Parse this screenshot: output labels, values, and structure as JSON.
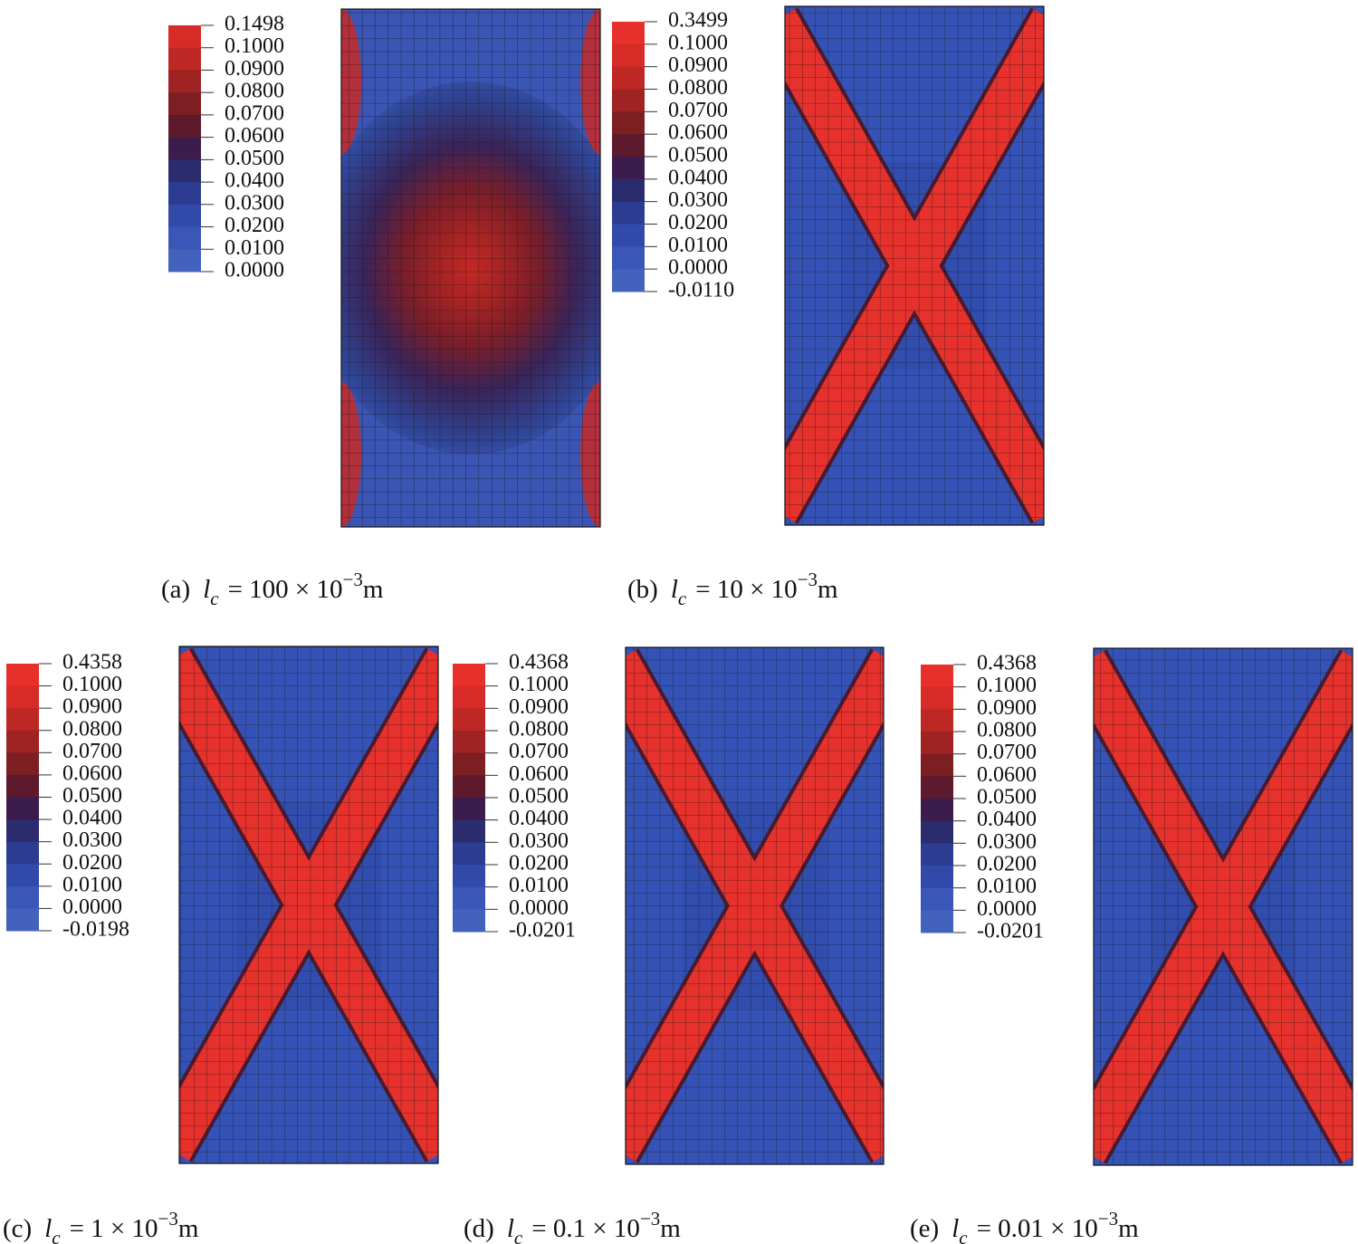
{
  "panels": [
    {
      "colorbar": {
        "labels": [
          "0.1498",
          "0.1000",
          "0.0900",
          "0.0800",
          "0.0700",
          "0.0600",
          "0.0500",
          "0.0400",
          "0.0300",
          "0.0200",
          "0.0100",
          "0.0000"
        ]
      },
      "caption": {
        "label": "(a)",
        "variable": "l",
        "subscript": "c",
        "equation": "= 100 × 10",
        "exponent": "−3",
        "unit": "m"
      }
    },
    {
      "colorbar": {
        "labels": [
          "0.3499",
          "0.1000",
          "0.0900",
          "0.0800",
          "0.0700",
          "0.0600",
          "0.0500",
          "0.0400",
          "0.0300",
          "0.0200",
          "0.0100",
          "0.0000",
          "-0.0110"
        ]
      },
      "caption": {
        "label": "(b)",
        "variable": "l",
        "subscript": "c",
        "equation": "= 10 × 10",
        "exponent": "−3",
        "unit": "m"
      }
    },
    {
      "colorbar": {
        "labels": [
          "0.4358",
          "0.1000",
          "0.0900",
          "0.0800",
          "0.0700",
          "0.0600",
          "0.0500",
          "0.0400",
          "0.0300",
          "0.0200",
          "0.0100",
          "0.0000",
          "-0.0198"
        ]
      },
      "caption": {
        "label": "(c)",
        "variable": "l",
        "subscript": "c",
        "equation": "= 1 × 10",
        "exponent": "−3",
        "unit": "m"
      }
    },
    {
      "colorbar": {
        "labels": [
          "0.4368",
          "0.1000",
          "0.0900",
          "0.0800",
          "0.0700",
          "0.0600",
          "0.0500",
          "0.0400",
          "0.0300",
          "0.0200",
          "0.0100",
          "0.0000",
          "-0.0201"
        ]
      },
      "caption": {
        "label": "(d)",
        "variable": "l",
        "subscript": "c",
        "equation": "= 0.1 × 10",
        "exponent": "−3",
        "unit": "m"
      }
    },
    {
      "colorbar": {
        "labels": [
          "0.4368",
          "0.1000",
          "0.0900",
          "0.0800",
          "0.0700",
          "0.0600",
          "0.0500",
          "0.0400",
          "0.0300",
          "0.0200",
          "0.0100",
          "0.0000",
          "-0.0201"
        ]
      },
      "caption": {
        "label": "(e)",
        "variable": "l",
        "subscript": "c",
        "equation": "= 0.01 × 10",
        "exponent": "−3",
        "unit": "m"
      }
    }
  ]
}
